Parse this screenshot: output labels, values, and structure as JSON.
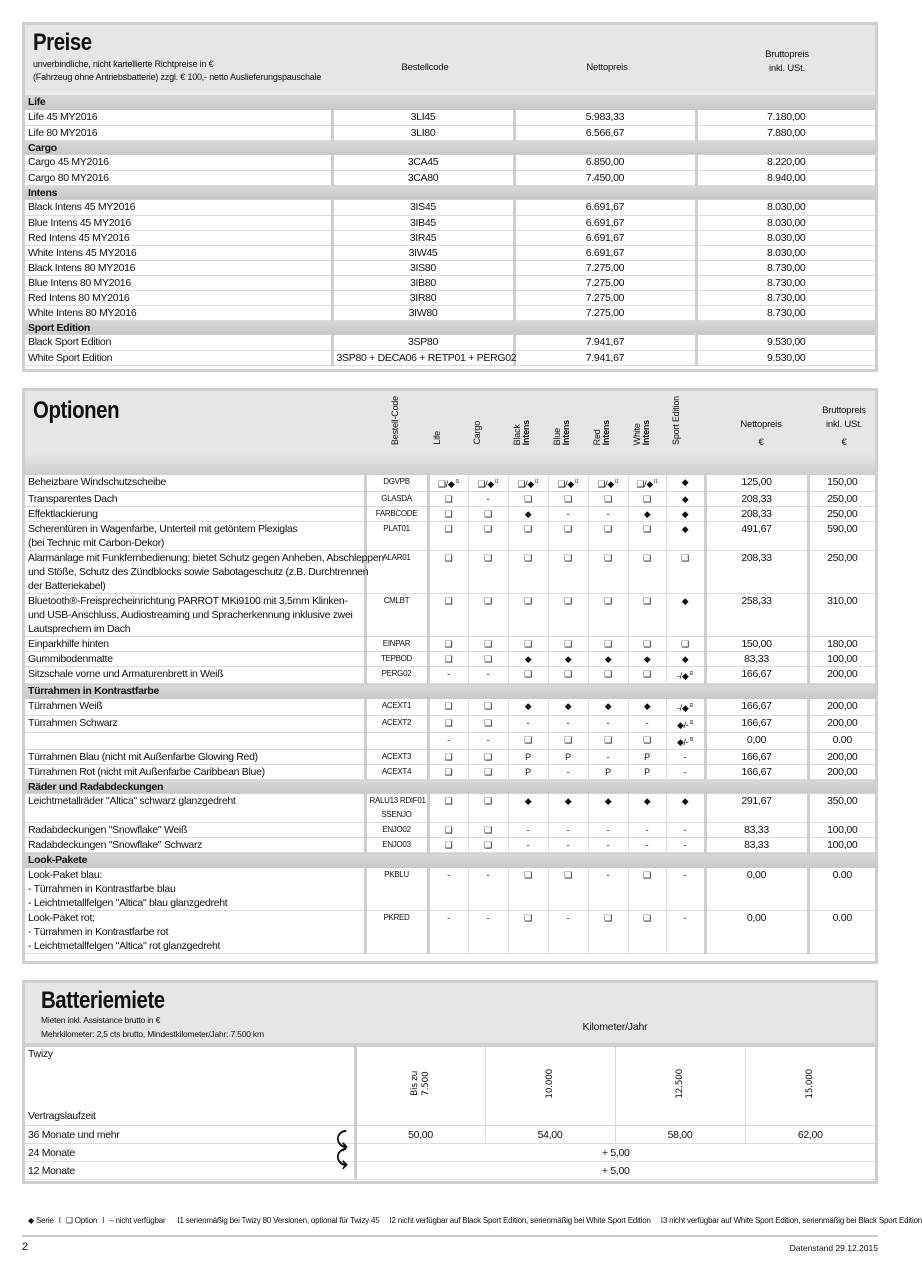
{
  "preise": {
    "title": "Preise",
    "subtitle_1": "unverbindliche, nicht kartellierte Richtpreise in €",
    "subtitle_2": "(Fahrzeug ohne Antriebsbatterie) zzgl. € 100,- netto Auslieferungspauschale",
    "col_code": "Bestellcode",
    "col_net": "Nettopreis",
    "col_gross_1": "Bruttopreis",
    "col_gross_2": "inkl. USt.",
    "sections": [
      {
        "name": "Life",
        "rows": [
          {
            "model": "Life 45 MY2016",
            "code": "3LI45",
            "net": "5.983,33",
            "gross": "7.180,00"
          },
          {
            "model": "Life 80 MY2016",
            "code": "3LI80",
            "net": "6.566,67",
            "gross": "7.880,00"
          }
        ]
      },
      {
        "name": "Cargo",
        "rows": [
          {
            "model": "Cargo 45 MY2016",
            "code": "3CA45",
            "net": "6.850,00",
            "gross": "8.220,00"
          },
          {
            "model": "Cargo 80 MY2016",
            "code": "3CA80",
            "net": "7.450,00",
            "gross": "8.940,00"
          }
        ]
      },
      {
        "name": "Intens",
        "rows": [
          {
            "model": "Black Intens 45 MY2016",
            "code": "3IS45",
            "net": "6.691,67",
            "gross": "8.030,00"
          },
          {
            "model": "Blue Intens 45 MY2016",
            "code": "3IB45",
            "net": "6.691,67",
            "gross": "8.030,00"
          },
          {
            "model": "Red Intens 45 MY2016",
            "code": "3IR45",
            "net": "6.691,67",
            "gross": "8.030,00"
          },
          {
            "model": "White Intens 45 MY2016",
            "code": "3IW45",
            "net": "6.691,67",
            "gross": "8.030,00"
          },
          {
            "model": "Black Intens 80 MY2016",
            "code": "3IS80",
            "net": "7.275,00",
            "gross": "8.730,00"
          },
          {
            "model": "Blue Intens 80 MY2016",
            "code": "3IB80",
            "net": "7.275,00",
            "gross": "8.730,00"
          },
          {
            "model": "Red Intens 80 MY2016",
            "code": "3IR80",
            "net": "7.275,00",
            "gross": "8.730,00"
          },
          {
            "model": "White Intens 80 MY2016",
            "code": "3IW80",
            "net": "7.275,00",
            "gross": "8.730,00"
          }
        ]
      },
      {
        "name": "Sport Edition",
        "rows": [
          {
            "model": "Black Sport Edition",
            "code": "3SP80",
            "net": "7.941,67",
            "gross": "9.530,00"
          },
          {
            "model": "White Sport Edition",
            "code": "3SP80 + DECA06 + RETP01 + PERG02",
            "net": "7.941,67",
            "gross": "9.530,00"
          }
        ]
      }
    ]
  },
  "optionen": {
    "title": "Optionen",
    "col_code": "Bestell-Code",
    "variants": [
      {
        "l1": "Life",
        "l2": ""
      },
      {
        "l1": "Cargo",
        "l2": ""
      },
      {
        "l1": "Black",
        "l2": "Intens"
      },
      {
        "l1": "Blue",
        "l2": "Intens"
      },
      {
        "l1": "Red",
        "l2": "Intens"
      },
      {
        "l1": "White",
        "l2": "Intens"
      },
      {
        "l1": "Sport Edition",
        "l2": ""
      }
    ],
    "col_net": "Nettopreis",
    "col_gross_1": "Bruttopreis",
    "col_gross_2": "inkl. USt.",
    "currency": "€",
    "rows": [
      {
        "desc": [
          "Beheizbare Windschutzscheibe"
        ],
        "code": [
          "DGVPB"
        ],
        "marks": [
          {
            "s": "❑/◆",
            "n": "I1"
          },
          {
            "s": "❑/◆",
            "n": "I1"
          },
          {
            "s": "❑/◆",
            "n": "I1"
          },
          {
            "s": "❑/◆",
            "n": "I1"
          },
          {
            "s": "❑/◆",
            "n": "I1"
          },
          {
            "s": "❑/◆",
            "n": "I1"
          },
          {
            "s": "◆"
          }
        ],
        "net": "125,00",
        "gross": "150,00"
      },
      {
        "desc": [
          "Transparentes Dach"
        ],
        "code": [
          "GLASDA"
        ],
        "marks": [
          {
            "s": "❑"
          },
          {
            "s": "-"
          },
          {
            "s": "❑"
          },
          {
            "s": "❑"
          },
          {
            "s": "❑"
          },
          {
            "s": "❑"
          },
          {
            "s": "◆"
          }
        ],
        "net": "208,33",
        "gross": "250,00"
      },
      {
        "desc": [
          "Effektlackierung"
        ],
        "code": [
          "FARBCODE"
        ],
        "marks": [
          {
            "s": "❑"
          },
          {
            "s": "❑"
          },
          {
            "s": "◆"
          },
          {
            "s": "-"
          },
          {
            "s": "-"
          },
          {
            "s": "◆"
          },
          {
            "s": "◆"
          }
        ],
        "net": "208,33",
        "gross": "250,00"
      },
      {
        "desc": [
          "Scherentüren in Wagenfarbe, Unterteil mit getöntem Plexiglas",
          "(bei Technic mit Carbon-Dekor)"
        ],
        "code": [
          "PLAT01"
        ],
        "marks": [
          {
            "s": "❑"
          },
          {
            "s": "❑"
          },
          {
            "s": "❑"
          },
          {
            "s": "❑"
          },
          {
            "s": "❑"
          },
          {
            "s": "❑"
          },
          {
            "s": "◆"
          }
        ],
        "net": "491,67",
        "gross": "590,00"
      },
      {
        "desc": [
          "Alarmanlage mit Funkfernbedienung: bietet Schutz gegen Anheben, Abschleppen",
          "und Stöße, Schutz des Zündblocks sowie Sabotageschutz (z.B. Durchtrennen",
          "der Batteriekabel)"
        ],
        "code": [
          "ALAR01"
        ],
        "marks": [
          {
            "s": "❑"
          },
          {
            "s": "❑"
          },
          {
            "s": "❑"
          },
          {
            "s": "❑"
          },
          {
            "s": "❑"
          },
          {
            "s": "❑"
          },
          {
            "s": "❑"
          }
        ],
        "net": "208,33",
        "gross": "250,00"
      },
      {
        "desc": [
          "Bluetooth®-Freisprecheinrichtung PARROT MKi9100 mit 3,5mm Klinken-",
          "und USB-Anschluss, Audiostreaming und Spracherkennung inklusive zwei",
          "Lautsprechern im Dach"
        ],
        "code": [
          "CMLBT"
        ],
        "marks": [
          {
            "s": "❑"
          },
          {
            "s": "❑"
          },
          {
            "s": "❑"
          },
          {
            "s": "❑"
          },
          {
            "s": "❑"
          },
          {
            "s": "❑"
          },
          {
            "s": "◆"
          }
        ],
        "net": "258,33",
        "gross": "310,00"
      },
      {
        "desc": [
          "Einparkhilfe hinten"
        ],
        "code": [
          "EINPAR"
        ],
        "marks": [
          {
            "s": "❑"
          },
          {
            "s": "❑"
          },
          {
            "s": "❑"
          },
          {
            "s": "❑"
          },
          {
            "s": "❑"
          },
          {
            "s": "❑"
          },
          {
            "s": "❑"
          }
        ],
        "net": "150,00",
        "gross": "180,00"
      },
      {
        "desc": [
          "Gummibodenmatte"
        ],
        "code": [
          "TEPBOD"
        ],
        "marks": [
          {
            "s": "❑"
          },
          {
            "s": "❑"
          },
          {
            "s": "◆"
          },
          {
            "s": "◆"
          },
          {
            "s": "◆"
          },
          {
            "s": "◆"
          },
          {
            "s": "◆"
          }
        ],
        "net": "83,33",
        "gross": "100,00"
      },
      {
        "desc": [
          "Sitzschale vorne und Armaturenbrett in Weiß"
        ],
        "code": [
          "PERG02"
        ],
        "marks": [
          {
            "s": "-"
          },
          {
            "s": "-"
          },
          {
            "s": "❑"
          },
          {
            "s": "❑"
          },
          {
            "s": "❑"
          },
          {
            "s": "❑"
          },
          {
            "s": "-/◆",
            "n": "I2"
          }
        ],
        "net": "166,67",
        "gross": "200,00"
      },
      {
        "section": "Türrahmen in Kontrastfarbe"
      },
      {
        "desc": [
          "Türrahmen Weiß"
        ],
        "code": [
          "ACEXT1"
        ],
        "marks": [
          {
            "s": "❑"
          },
          {
            "s": "❑"
          },
          {
            "s": "◆"
          },
          {
            "s": "◆"
          },
          {
            "s": "◆"
          },
          {
            "s": "◆"
          },
          {
            "s": "-/◆",
            "n": "I2"
          }
        ],
        "net": "166,67",
        "gross": "200,00"
      },
      {
        "desc": [
          "Türrahmen Schwarz"
        ],
        "code": [
          "ACEXT2"
        ],
        "marks": [
          {
            "s": "❑"
          },
          {
            "s": "❑"
          },
          {
            "s": "-"
          },
          {
            "s": "-"
          },
          {
            "s": "-"
          },
          {
            "s": "-"
          },
          {
            "s": "◆/-",
            "n": "I3"
          }
        ],
        "net": "166,67",
        "gross": "200,00"
      },
      {
        "desc": [
          ""
        ],
        "code": [
          ""
        ],
        "marks": [
          {
            "s": "-"
          },
          {
            "s": "-"
          },
          {
            "s": "❑"
          },
          {
            "s": "❑"
          },
          {
            "s": "❑"
          },
          {
            "s": "❑"
          },
          {
            "s": "◆/-",
            "n": "I3"
          }
        ],
        "net": "0,00",
        "gross": "0.00"
      },
      {
        "desc": [
          "Türrahmen Blau (nicht mit Außenfarbe Glowing Red)"
        ],
        "code": [
          "ACEXT3"
        ],
        "marks": [
          {
            "s": "❑"
          },
          {
            "s": "❑"
          },
          {
            "s": "P"
          },
          {
            "s": "P"
          },
          {
            "s": "-"
          },
          {
            "s": "P"
          },
          {
            "s": "-"
          }
        ],
        "net": "166,67",
        "gross": "200,00"
      },
      {
        "desc": [
          "Türrahmen Rot (nicht mit Außenfarbe Caribbean Blue)"
        ],
        "code": [
          "ACEXT4"
        ],
        "marks": [
          {
            "s": "❑"
          },
          {
            "s": "❑"
          },
          {
            "s": "P"
          },
          {
            "s": "-"
          },
          {
            "s": "P"
          },
          {
            "s": "P"
          },
          {
            "s": "-"
          }
        ],
        "net": "166,67",
        "gross": "200,00"
      },
      {
        "section": "Räder und Radabdeckungen"
      },
      {
        "desc": [
          "Leichtmetallräder \"Altica\" schwarz glanzgedreht"
        ],
        "code": [
          "RALU13 RDIF01",
          "SSENJO"
        ],
        "marks": [
          {
            "s": "❑"
          },
          {
            "s": "❑"
          },
          {
            "s": "◆"
          },
          {
            "s": "◆"
          },
          {
            "s": "◆"
          },
          {
            "s": "◆"
          },
          {
            "s": "◆"
          }
        ],
        "net": "291,67",
        "gross": "350,00"
      },
      {
        "desc": [
          "Radabdeckungen \"Snowflake\" Weiß"
        ],
        "code": [
          "ENJO02"
        ],
        "marks": [
          {
            "s": "❑"
          },
          {
            "s": "❑"
          },
          {
            "s": "-"
          },
          {
            "s": "-"
          },
          {
            "s": "-"
          },
          {
            "s": "-"
          },
          {
            "s": "-"
          }
        ],
        "net": "83,33",
        "gross": "100,00"
      },
      {
        "desc": [
          "Radabdeckungen \"Snowflake\" Schwarz"
        ],
        "code": [
          "ENJO03"
        ],
        "marks": [
          {
            "s": "❑"
          },
          {
            "s": "❑"
          },
          {
            "s": "-"
          },
          {
            "s": "-"
          },
          {
            "s": "-"
          },
          {
            "s": "-"
          },
          {
            "s": "-"
          }
        ],
        "net": "83,33",
        "gross": "100,00"
      },
      {
        "section": "Look-Pakete"
      },
      {
        "desc": [
          "Look-Paket blau:",
          "- Türrahmen in Kontrastfarbe blau",
          "- Leichtmetallfelgen \"Altica\" blau glanzgedreht"
        ],
        "code": [
          "PKBLU"
        ],
        "marks": [
          {
            "s": "-"
          },
          {
            "s": "-"
          },
          {
            "s": "❑"
          },
          {
            "s": "❑"
          },
          {
            "s": "-"
          },
          {
            "s": "❑"
          },
          {
            "s": "-"
          }
        ],
        "net": "0,00",
        "gross": "0.00"
      },
      {
        "desc": [
          "Look-Paket rot:",
          "- Türrahmen in Kontrastfarbe rot",
          "- Leichtmetallfelgen \"Altica\" rot glanzgedreht"
        ],
        "code": [
          "PKRED"
        ],
        "marks": [
          {
            "s": "-"
          },
          {
            "s": "-"
          },
          {
            "s": "❑"
          },
          {
            "s": "-"
          },
          {
            "s": "❑"
          },
          {
            "s": "❑"
          },
          {
            "s": "-"
          }
        ],
        "net": "0,00",
        "gross": "0.00"
      }
    ]
  },
  "batterie": {
    "title": "Batteriemiete",
    "subtitle_1": "Mieten inkl. Assistance brutto in €",
    "subtitle_2": "Mehrkilometer: 2,5 cts brutto, Mindestkilometer/Jahr: 7.500 km",
    "km_header": "Kilometer/Jahr",
    "model": "Twizy",
    "term_label": "Vertragslaufzeit",
    "km_cols": [
      [
        "Bis zu",
        "7.500"
      ],
      [
        "10.000"
      ],
      [
        "12.500"
      ],
      [
        "15.000"
      ]
    ],
    "rows": [
      {
        "term": "36 Monate und mehr",
        "values": [
          "50,00",
          "54,00",
          "58,00",
          "62,00"
        ]
      },
      {
        "term": "24 Monate",
        "span": "+ 5,00"
      },
      {
        "term": "12 Monate",
        "span": "+ 5,00"
      }
    ]
  },
  "legend": {
    "serie": "◆ Serie",
    "option": "❑ Option",
    "na": "– nicht verfügbar",
    "sep": "I",
    "notes": [
      "I1 serienmäßig bei Twizy 80 Versionen, optional für Twizy 45",
      "I2 nicht verfügbar auf Black Sport Edition, serienmäßig bei White Sport Edition",
      "I3 nicht verfügbar auf White Sport Edition, serienmäßig bei Black Sport Edition"
    ]
  },
  "footer": {
    "page": "2",
    "date": "Datenstand 29.12.2015"
  }
}
